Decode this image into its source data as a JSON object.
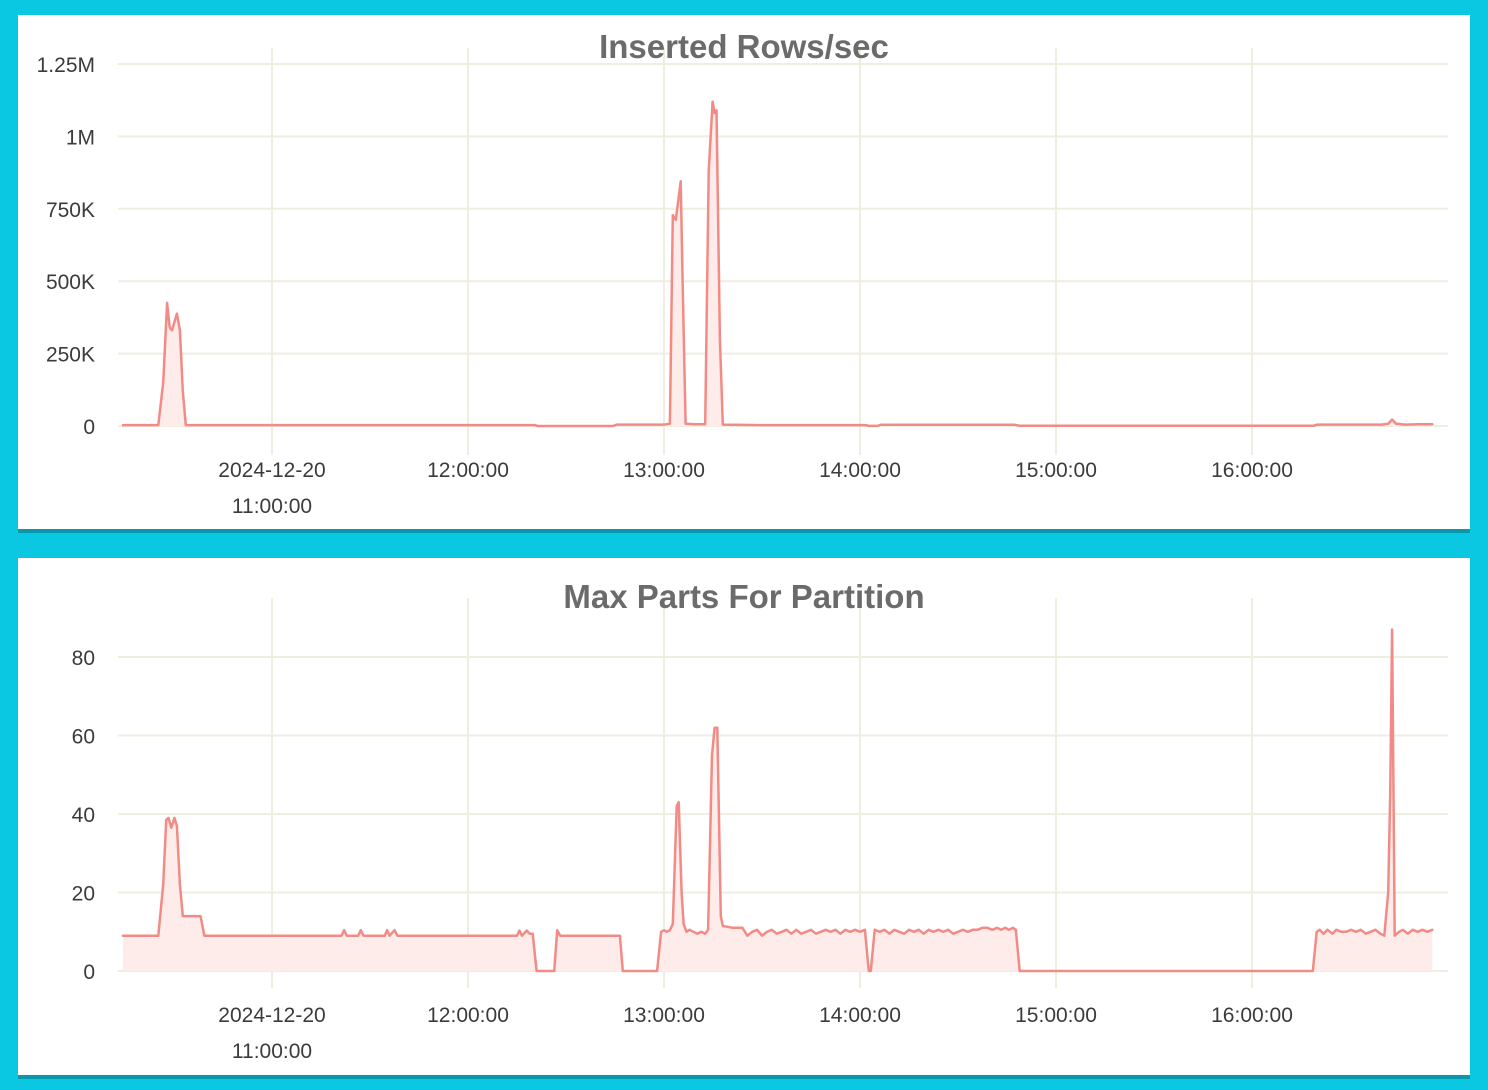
{
  "style": {
    "background": "#0bc8e2",
    "panel": "#ffffff",
    "line_color": "#f28b85",
    "fill_color": "#fdecea",
    "grid_color": "#f0ede1",
    "axis_text_color": "#3b3b3b",
    "title_color": "#6b6b6b"
  },
  "chart_data": [
    {
      "type": "area",
      "title": "Inserted Rows/sec",
      "xlabel": "",
      "ylabel": "",
      "x_unit": "time of day on 2024-12-20, decimal hours",
      "y_unit": "rows per second",
      "x_range": [
        10.15,
        17.0
      ],
      "ylim": [
        0,
        1250000
      ],
      "grid": true,
      "legend": "none",
      "y_ticks": [
        {
          "value": 0,
          "label": "0"
        },
        {
          "value": 250000,
          "label": "250K"
        },
        {
          "value": 500000,
          "label": "500K"
        },
        {
          "value": 750000,
          "label": "750K"
        },
        {
          "value": 1000000,
          "label": "1M"
        },
        {
          "value": 1250000,
          "label": "1.25M"
        }
      ],
      "x_ticks": [
        {
          "t": 11,
          "lines": [
            "2024-12-20",
            "11:00:00"
          ]
        },
        {
          "t": 12,
          "lines": [
            "12:00:00"
          ]
        },
        {
          "t": 13,
          "lines": [
            "13:00:00"
          ]
        },
        {
          "t": 14,
          "lines": [
            "14:00:00"
          ]
        },
        {
          "t": 15,
          "lines": [
            "15:00:00"
          ]
        },
        {
          "t": 16,
          "lines": [
            "16:00:00"
          ]
        }
      ],
      "series": [
        {
          "name": "Inserted Rows/sec",
          "points": [
            [
              10.24,
              3000
            ],
            [
              10.3,
              3000
            ],
            [
              10.42,
              3000
            ],
            [
              10.445,
              150000
            ],
            [
              10.465,
              425000
            ],
            [
              10.478,
              340000
            ],
            [
              10.49,
              330000
            ],
            [
              10.515,
              388000
            ],
            [
              10.53,
              330000
            ],
            [
              10.545,
              120000
            ],
            [
              10.56,
              3000
            ],
            [
              10.8,
              3000
            ],
            [
              11.2,
              3000
            ],
            [
              11.6,
              3000
            ],
            [
              12.0,
              3000
            ],
            [
              12.34,
              3000
            ],
            [
              12.355,
              0
            ],
            [
              12.6,
              0
            ],
            [
              12.74,
              0
            ],
            [
              12.76,
              5000
            ],
            [
              13.0,
              5000
            ],
            [
              13.03,
              8000
            ],
            [
              13.045,
              728000
            ],
            [
              13.06,
              712000
            ],
            [
              13.085,
              845000
            ],
            [
              13.095,
              500000
            ],
            [
              13.11,
              8000
            ],
            [
              13.16,
              6000
            ],
            [
              13.21,
              6000
            ],
            [
              13.228,
              880000
            ],
            [
              13.248,
              1120000
            ],
            [
              13.258,
              1080000
            ],
            [
              13.268,
              1090000
            ],
            [
              13.285,
              300000
            ],
            [
              13.3,
              5000
            ],
            [
              13.5,
              3000
            ],
            [
              13.8,
              3000
            ],
            [
              14.03,
              3000
            ],
            [
              14.045,
              500
            ],
            [
              14.09,
              500
            ],
            [
              14.105,
              4000
            ],
            [
              14.4,
              4000
            ],
            [
              14.79,
              4000
            ],
            [
              14.815,
              800
            ],
            [
              15.2,
              800
            ],
            [
              15.8,
              800
            ],
            [
              16.31,
              800
            ],
            [
              16.335,
              5000
            ],
            [
              16.5,
              5000
            ],
            [
              16.66,
              5000
            ],
            [
              16.695,
              8000
            ],
            [
              16.715,
              22000
            ],
            [
              16.735,
              8000
            ],
            [
              16.78,
              5000
            ],
            [
              16.85,
              6000
            ],
            [
              16.92,
              6000
            ]
          ]
        }
      ]
    },
    {
      "type": "area",
      "title": "Max Parts For Partition",
      "xlabel": "",
      "ylabel": "",
      "x_unit": "time of day on 2024-12-20, decimal hours",
      "y_unit": "parts",
      "x_range": [
        10.15,
        17.0
      ],
      "ylim": [
        0,
        88
      ],
      "grid": true,
      "legend": "none",
      "y_ticks": [
        {
          "value": 0,
          "label": "0"
        },
        {
          "value": 20,
          "label": "20"
        },
        {
          "value": 40,
          "label": "40"
        },
        {
          "value": 60,
          "label": "60"
        },
        {
          "value": 80,
          "label": "80"
        }
      ],
      "x_ticks": [
        {
          "t": 11,
          "lines": [
            "2024-12-20",
            "11:00:00"
          ]
        },
        {
          "t": 12,
          "lines": [
            "12:00:00"
          ]
        },
        {
          "t": 13,
          "lines": [
            "13:00:00"
          ]
        },
        {
          "t": 14,
          "lines": [
            "14:00:00"
          ]
        },
        {
          "t": 15,
          "lines": [
            "15:00:00"
          ]
        },
        {
          "t": 16,
          "lines": [
            "16:00:00"
          ]
        }
      ],
      "series": [
        {
          "name": "Max Parts For Partition",
          "points": [
            [
              10.24,
              9
            ],
            [
              10.33,
              9
            ],
            [
              10.42,
              9
            ],
            [
              10.445,
              22
            ],
            [
              10.46,
              38.5
            ],
            [
              10.472,
              39
            ],
            [
              10.486,
              36.5
            ],
            [
              10.502,
              39
            ],
            [
              10.515,
              37
            ],
            [
              10.53,
              22
            ],
            [
              10.545,
              14
            ],
            [
              10.6,
              14
            ],
            [
              10.635,
              14
            ],
            [
              10.655,
              9
            ],
            [
              10.8,
              9
            ],
            [
              11.0,
              9
            ],
            [
              11.2,
              9
            ],
            [
              11.355,
              9
            ],
            [
              11.368,
              10.4
            ],
            [
              11.382,
              9
            ],
            [
              11.44,
              9
            ],
            [
              11.453,
              10.4
            ],
            [
              11.467,
              9
            ],
            [
              11.575,
              9
            ],
            [
              11.588,
              10.4
            ],
            [
              11.6,
              9
            ],
            [
              11.625,
              10.4
            ],
            [
              11.64,
              9
            ],
            [
              11.9,
              9
            ],
            [
              12.1,
              9
            ],
            [
              12.25,
              9
            ],
            [
              12.262,
              10.3
            ],
            [
              12.275,
              9
            ],
            [
              12.3,
              10.3
            ],
            [
              12.315,
              9.5
            ],
            [
              12.33,
              9.5
            ],
            [
              12.35,
              0
            ],
            [
              12.4,
              0
            ],
            [
              12.44,
              0
            ],
            [
              12.455,
              10.4
            ],
            [
              12.47,
              9
            ],
            [
              12.6,
              9
            ],
            [
              12.7,
              9
            ],
            [
              12.775,
              9
            ],
            [
              12.79,
              0
            ],
            [
              12.88,
              0
            ],
            [
              12.965,
              0
            ],
            [
              12.985,
              10
            ],
            [
              13.0,
              10.4
            ],
            [
              13.015,
              10
            ],
            [
              13.03,
              10.4
            ],
            [
              13.045,
              12
            ],
            [
              13.065,
              42
            ],
            [
              13.075,
              43
            ],
            [
              13.09,
              20
            ],
            [
              13.1,
              12
            ],
            [
              13.115,
              10
            ],
            [
              13.13,
              10.5
            ],
            [
              13.15,
              10
            ],
            [
              13.17,
              9.5
            ],
            [
              13.19,
              10
            ],
            [
              13.21,
              9.5
            ],
            [
              13.225,
              10.5
            ],
            [
              13.245,
              55
            ],
            [
              13.258,
              62
            ],
            [
              13.272,
              62
            ],
            [
              13.29,
              14
            ],
            [
              13.3,
              11.5
            ],
            [
              13.35,
              11
            ],
            [
              13.4,
              11
            ],
            [
              13.425,
              9
            ],
            [
              13.45,
              10
            ],
            [
              13.475,
              10.5
            ],
            [
              13.5,
              9
            ],
            [
              13.525,
              10
            ],
            [
              13.55,
              10.5
            ],
            [
              13.575,
              9.5
            ],
            [
              13.6,
              10
            ],
            [
              13.625,
              10.5
            ],
            [
              13.65,
              9.5
            ],
            [
              13.675,
              10.5
            ],
            [
              13.7,
              9.5
            ],
            [
              13.725,
              10
            ],
            [
              13.75,
              10.5
            ],
            [
              13.775,
              9.5
            ],
            [
              13.8,
              10
            ],
            [
              13.825,
              10.5
            ],
            [
              13.85,
              10
            ],
            [
              13.875,
              10.5
            ],
            [
              13.9,
              9.5
            ],
            [
              13.925,
              10.5
            ],
            [
              13.95,
              10
            ],
            [
              13.975,
              10.5
            ],
            [
              14.0,
              10
            ],
            [
              14.025,
              10.5
            ],
            [
              14.045,
              0
            ],
            [
              14.055,
              0
            ],
            [
              14.075,
              10.5
            ],
            [
              14.1,
              10
            ],
            [
              14.125,
              10.5
            ],
            [
              14.15,
              9.5
            ],
            [
              14.175,
              10.5
            ],
            [
              14.2,
              10
            ],
            [
              14.225,
              9.5
            ],
            [
              14.25,
              10.5
            ],
            [
              14.275,
              10
            ],
            [
              14.3,
              10.5
            ],
            [
              14.325,
              9.5
            ],
            [
              14.35,
              10.5
            ],
            [
              14.375,
              10
            ],
            [
              14.4,
              10.5
            ],
            [
              14.425,
              10
            ],
            [
              14.45,
              10.5
            ],
            [
              14.475,
              9.5
            ],
            [
              14.5,
              10
            ],
            [
              14.525,
              10.5
            ],
            [
              14.55,
              10
            ],
            [
              14.575,
              10.5
            ],
            [
              14.6,
              10.5
            ],
            [
              14.625,
              11
            ],
            [
              14.65,
              11
            ],
            [
              14.675,
              10.5
            ],
            [
              14.7,
              11
            ],
            [
              14.72,
              10.5
            ],
            [
              14.74,
              11
            ],
            [
              14.76,
              10.5
            ],
            [
              14.78,
              11
            ],
            [
              14.795,
              10.5
            ],
            [
              14.815,
              0
            ],
            [
              15.0,
              0
            ],
            [
              15.5,
              0
            ],
            [
              16.0,
              0
            ],
            [
              16.31,
              0
            ],
            [
              16.33,
              10
            ],
            [
              16.345,
              10.5
            ],
            [
              16.365,
              9.5
            ],
            [
              16.385,
              10.5
            ],
            [
              16.41,
              9.5
            ],
            [
              16.43,
              10.5
            ],
            [
              16.455,
              10
            ],
            [
              16.48,
              10
            ],
            [
              16.505,
              10.5
            ],
            [
              16.53,
              10
            ],
            [
              16.555,
              10.5
            ],
            [
              16.58,
              9.5
            ],
            [
              16.605,
              10
            ],
            [
              16.63,
              10.5
            ],
            [
              16.655,
              9.5
            ],
            [
              16.675,
              9
            ],
            [
              16.695,
              20
            ],
            [
              16.705,
              45
            ],
            [
              16.715,
              87
            ],
            [
              16.728,
              9
            ],
            [
              16.75,
              10
            ],
            [
              16.77,
              10.5
            ],
            [
              16.795,
              9.5
            ],
            [
              16.82,
              10.5
            ],
            [
              16.845,
              10
            ],
            [
              16.87,
              10.5
            ],
            [
              16.895,
              10
            ],
            [
              16.92,
              10.5
            ]
          ]
        }
      ]
    }
  ]
}
